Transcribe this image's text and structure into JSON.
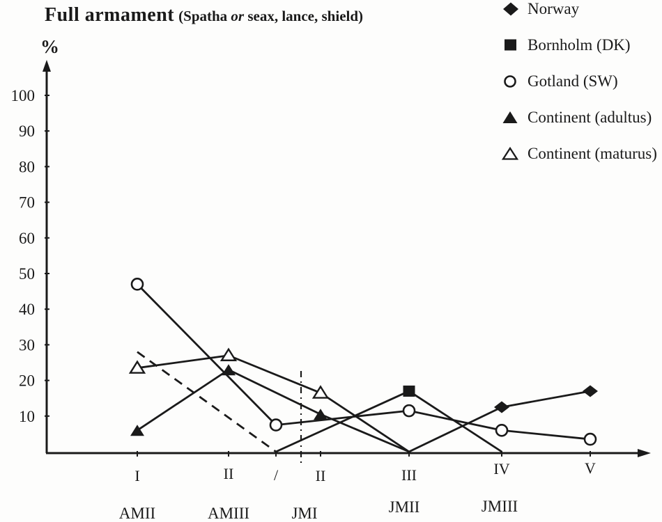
{
  "figure": {
    "title_main": "Full armament",
    "title_paren_pre": "(Spatha ",
    "title_paren_italic": "or",
    "title_paren_post": " seax, lance, shield)",
    "y_axis_unit": "%"
  },
  "chart_data": {
    "type": "line",
    "title": "Full armament (Spatha or seax, lance, shield)",
    "ylabel": "%",
    "ylim": [
      0,
      100
    ],
    "yticks": [
      10,
      20,
      30,
      40,
      50,
      60,
      70,
      80,
      90,
      100
    ],
    "categories": [
      "I",
      "II",
      "/",
      "II",
      "III",
      "IV",
      "V"
    ],
    "period_labels": [
      "AMII",
      "AMIII",
      "JMI",
      "JMII",
      "JMIII"
    ],
    "legend_position": "top-right",
    "grid": false,
    "phase_divider_note": "dash-dot vertical line between AM and JM phases",
    "ink_color": "#1a1a1a",
    "series": [
      {
        "name": "Norway",
        "marker": "filled-diamond",
        "values": [
          null,
          null,
          null,
          null,
          0,
          12.5,
          17
        ],
        "markers_at": [
          5,
          6
        ]
      },
      {
        "name": "Bornholm (DK)",
        "marker": "filled-square",
        "values": [
          28,
          null,
          0,
          null,
          17,
          0,
          null
        ],
        "markers_at": [
          4
        ],
        "dash_before_index": 2
      },
      {
        "name": "Gotland (SW)",
        "marker": "open-circle",
        "values": [
          47,
          null,
          7.5,
          null,
          11.5,
          6,
          3.5
        ],
        "markers_at": [
          0,
          2,
          4,
          5,
          6
        ]
      },
      {
        "name": "Continent (adultus)",
        "marker": "filled-triangle",
        "values": [
          6,
          23,
          null,
          10.5,
          0,
          null,
          null
        ],
        "markers_at": [
          0,
          1,
          3
        ]
      },
      {
        "name": "Continent (maturus)",
        "marker": "open-triangle",
        "values": [
          23.5,
          27,
          null,
          16.5,
          0,
          null,
          null
        ],
        "markers_at": [
          0,
          1,
          3
        ]
      }
    ]
  }
}
